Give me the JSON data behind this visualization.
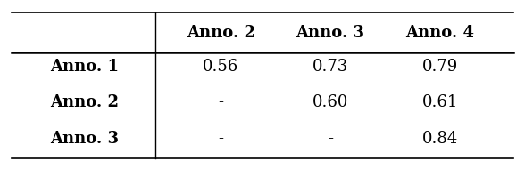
{
  "col_headers": [
    "",
    "Anno. 2",
    "Anno. 3",
    "Anno. 4"
  ],
  "rows": [
    [
      "Anno. 1",
      "0.56",
      "0.73",
      "0.79"
    ],
    [
      "Anno. 2",
      "-",
      "0.60",
      "0.61"
    ],
    [
      "Anno. 3",
      "-",
      "-",
      "0.84"
    ]
  ],
  "background_color": "#ffffff",
  "text_color": "#000000",
  "bold_row_labels": true,
  "bold_col_headers": true,
  "figsize": [
    5.88,
    1.9
  ],
  "dpi": 100
}
